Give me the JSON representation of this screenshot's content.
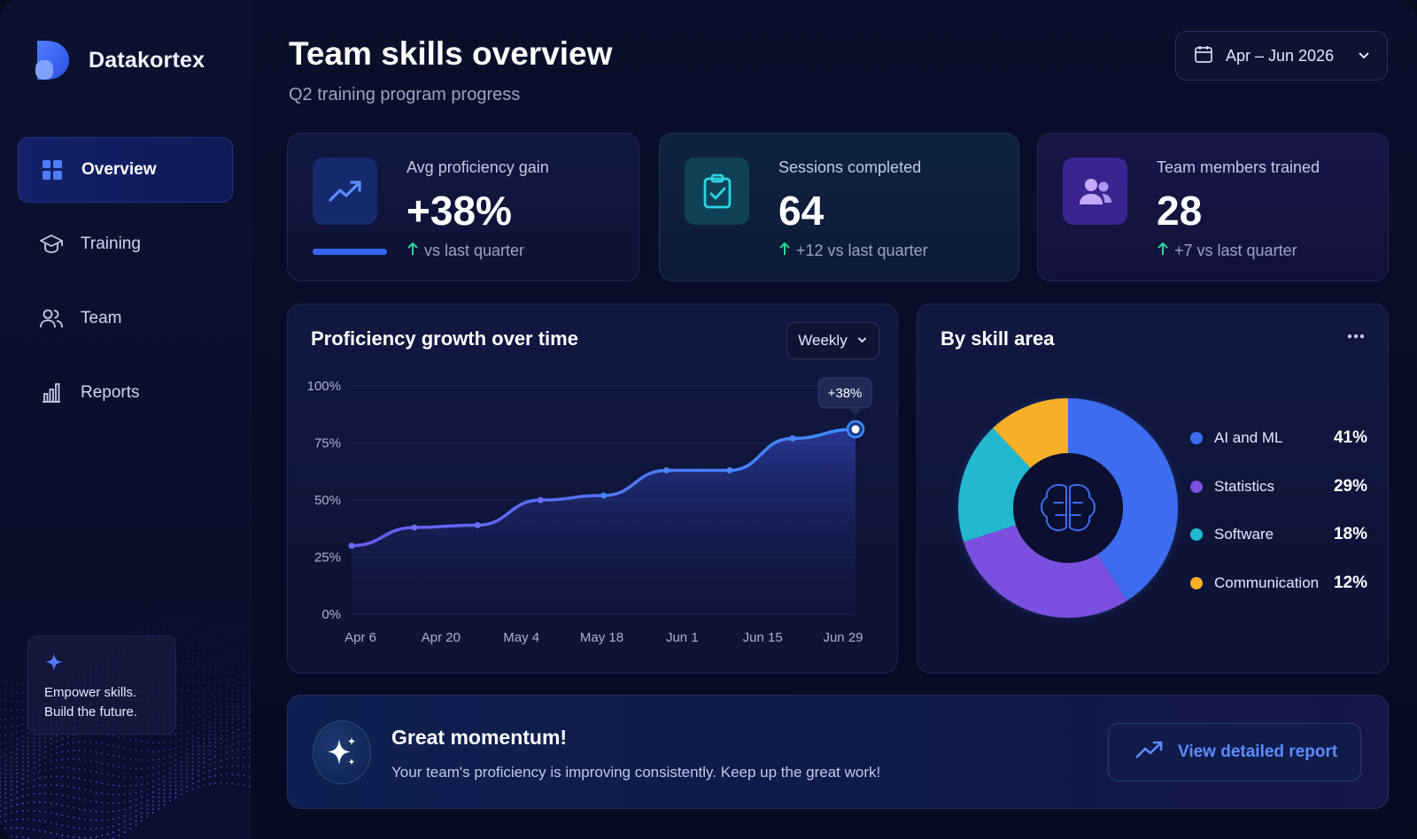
{
  "brand": {
    "name": "Datakortex"
  },
  "sidebar": {
    "items": [
      {
        "label": "Overview",
        "icon": "grid-icon",
        "active": true
      },
      {
        "label": "Training",
        "icon": "graduation-cap-icon",
        "active": false
      },
      {
        "label": "Team",
        "icon": "users-icon",
        "active": false
      },
      {
        "label": "Reports",
        "icon": "bar-chart-icon",
        "active": false
      }
    ],
    "promo": {
      "icon": "sparkle-icon",
      "line1": "Empower skills.",
      "line2": "Build the future."
    }
  },
  "header": {
    "title": "Team skills overview",
    "subtitle": "Q2 training program progress",
    "date_range": "Apr – Jun 2026"
  },
  "stats": [
    {
      "label": "Avg proficiency gain",
      "value": "+38%",
      "delta": "vs last quarter",
      "icon": "trend-up-icon"
    },
    {
      "label": "Sessions completed",
      "value": "64",
      "delta": "+12 vs last quarter",
      "icon": "clipboard-check-icon"
    },
    {
      "label": "Team members trained",
      "value": "28",
      "delta": "+7 vs last quarter",
      "icon": "users-icon"
    }
  ],
  "growth_chart": {
    "title": "Proficiency growth over time",
    "period_select": "Weekly",
    "callout": "+38%"
  },
  "skill_chart": {
    "title": "By skill area",
    "center_icon": "brain-icon"
  },
  "chart_data": [
    {
      "type": "area",
      "title": "Proficiency growth over time",
      "x_ticks": [
        "Apr 6",
        "Apr 20",
        "May 4",
        "May 18",
        "Jun 1",
        "Jun 15",
        "Jun 29"
      ],
      "y_ticks": [
        "0%",
        "25%",
        "50%",
        "75%",
        "100%"
      ],
      "ylim": [
        0,
        100
      ],
      "series": [
        {
          "values": [
            30,
            38,
            39,
            50,
            52,
            63,
            63,
            77,
            81
          ]
        }
      ],
      "annotation": "+38%",
      "grid": true
    },
    {
      "type": "pie",
      "title": "By skill area",
      "labels": [
        "AI and ML",
        "Statistics",
        "Software",
        "Communication"
      ],
      "values": [
        41,
        29,
        18,
        12
      ],
      "display": [
        "41%",
        "29%",
        "18%",
        "12%"
      ],
      "colors": [
        "#3d6cf0",
        "#7b4fe0",
        "#22b9d0",
        "#f5b028"
      ],
      "legend": "right"
    }
  ],
  "banner": {
    "title": "Great momentum!",
    "text": "Your team's proficiency is improving consistently. Keep up the great work!",
    "button": "View detailed report"
  }
}
